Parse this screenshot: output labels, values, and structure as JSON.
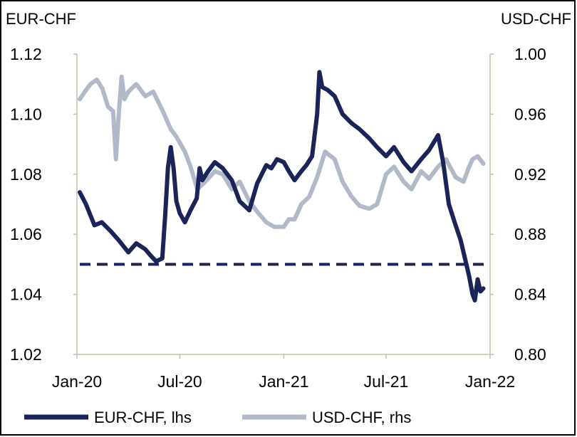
{
  "chart_data": {
    "type": "line",
    "title": "",
    "ylabel_left": "EUR-CHF",
    "ylabel_right": "USD-CHF",
    "xlabel": "",
    "x_ticks": [
      "Jan-20",
      "Jul-20",
      "Jan-21",
      "Jul-21",
      "Jan-22"
    ],
    "xlim": [
      "2020-01-01",
      "2022-01-01"
    ],
    "ylim_left": [
      1.02,
      1.12
    ],
    "ylim_right": [
      0.8,
      1.0
    ],
    "yticks_left": [
      "1.02",
      "1.04",
      "1.06",
      "1.08",
      "1.10",
      "1.12"
    ],
    "yticks_right": [
      "0.80",
      "0.84",
      "0.88",
      "0.92",
      "0.96",
      "1.00"
    ],
    "grid": false,
    "legend_position": "bottom",
    "series": [
      {
        "name": "EUR-CHF, lhs",
        "axis": "left",
        "color": "#1b2458",
        "x": [
          "2020-01-06",
          "2020-01-17",
          "2020-02-01",
          "2020-02-14",
          "2020-03-01",
          "2020-03-15",
          "2020-04-01",
          "2020-04-15",
          "2020-05-01",
          "2020-05-10",
          "2020-05-20",
          "2020-05-31",
          "2020-06-05",
          "2020-06-10",
          "2020-06-15",
          "2020-06-20",
          "2020-06-25",
          "2020-07-01",
          "2020-07-10",
          "2020-07-20",
          "2020-07-31",
          "2020-08-05",
          "2020-08-10",
          "2020-08-20",
          "2020-09-01",
          "2020-09-15",
          "2020-10-01",
          "2020-10-15",
          "2020-11-01",
          "2020-11-15",
          "2020-12-01",
          "2020-12-10",
          "2020-12-20",
          "2021-01-01",
          "2021-01-10",
          "2021-01-20",
          "2021-02-01",
          "2021-02-10",
          "2021-02-20",
          "2021-03-01",
          "2021-03-05",
          "2021-03-10",
          "2021-03-20",
          "2021-04-01",
          "2021-04-15",
          "2021-05-01",
          "2021-05-15",
          "2021-06-01",
          "2021-06-15",
          "2021-07-01",
          "2021-07-15",
          "2021-08-01",
          "2021-08-15",
          "2021-09-01",
          "2021-09-15",
          "2021-10-01",
          "2021-10-10",
          "2021-10-20",
          "2021-11-01",
          "2021-11-10",
          "2021-11-20",
          "2021-11-25",
          "2021-12-01",
          "2021-12-05",
          "2021-12-10",
          "2021-12-15",
          "2021-12-20"
        ],
        "y": [
          1.074,
          1.07,
          1.063,
          1.064,
          1.061,
          1.058,
          1.054,
          1.057,
          1.055,
          1.053,
          1.051,
          1.052,
          1.066,
          1.082,
          1.089,
          1.082,
          1.071,
          1.067,
          1.064,
          1.068,
          1.072,
          1.082,
          1.078,
          1.081,
          1.084,
          1.082,
          1.078,
          1.071,
          1.068,
          1.077,
          1.083,
          1.082,
          1.085,
          1.084,
          1.081,
          1.078,
          1.081,
          1.083,
          1.086,
          1.1,
          1.114,
          1.109,
          1.108,
          1.106,
          1.1,
          1.097,
          1.095,
          1.092,
          1.089,
          1.086,
          1.089,
          1.084,
          1.081,
          1.085,
          1.088,
          1.093,
          1.084,
          1.07,
          1.063,
          1.058,
          1.05,
          1.046,
          1.04,
          1.038,
          1.045,
          1.041,
          1.042
        ]
      },
      {
        "name": "USD-CHF, rhs",
        "axis": "right",
        "color": "#b1b9c9",
        "x": [
          "2020-01-06",
          "2020-01-15",
          "2020-01-25",
          "2020-02-05",
          "2020-02-15",
          "2020-02-25",
          "2020-03-05",
          "2020-03-10",
          "2020-03-15",
          "2020-03-20",
          "2020-03-25",
          "2020-04-01",
          "2020-04-15",
          "2020-05-01",
          "2020-05-15",
          "2020-06-01",
          "2020-06-15",
          "2020-06-25",
          "2020-07-10",
          "2020-07-20",
          "2020-08-01",
          "2020-08-15",
          "2020-09-01",
          "2020-09-15",
          "2020-10-01",
          "2020-10-15",
          "2020-11-01",
          "2020-11-15",
          "2020-12-01",
          "2020-12-15",
          "2021-01-01",
          "2021-01-10",
          "2021-01-20",
          "2021-02-01",
          "2021-02-15",
          "2021-03-01",
          "2021-03-15",
          "2021-04-01",
          "2021-04-15",
          "2021-05-01",
          "2021-05-15",
          "2021-06-01",
          "2021-06-15",
          "2021-07-01",
          "2021-07-15",
          "2021-08-01",
          "2021-08-15",
          "2021-09-01",
          "2021-09-15",
          "2021-10-01",
          "2021-10-15",
          "2021-11-01",
          "2021-11-15",
          "2021-11-25",
          "2021-12-01",
          "2021-12-10",
          "2021-12-20"
        ],
        "y": [
          0.97,
          0.975,
          0.98,
          0.983,
          0.977,
          0.965,
          0.962,
          0.93,
          0.96,
          0.985,
          0.97,
          0.975,
          0.98,
          0.972,
          0.975,
          0.962,
          0.95,
          0.945,
          0.935,
          0.925,
          0.91,
          0.915,
          0.922,
          0.92,
          0.91,
          0.915,
          0.902,
          0.895,
          0.888,
          0.885,
          0.885,
          0.89,
          0.89,
          0.9,
          0.905,
          0.918,
          0.935,
          0.93,
          0.915,
          0.905,
          0.899,
          0.897,
          0.9,
          0.92,
          0.925,
          0.915,
          0.91,
          0.922,
          0.917,
          0.925,
          0.93,
          0.918,
          0.915,
          0.925,
          0.93,
          0.932,
          0.927
        ]
      }
    ],
    "reference_lines": [
      {
        "axis": "left",
        "y": 1.05,
        "x_from": "2020-01-06",
        "x_to": "2021-12-28",
        "style": "dashed",
        "color": "#1b2458"
      }
    ]
  }
}
